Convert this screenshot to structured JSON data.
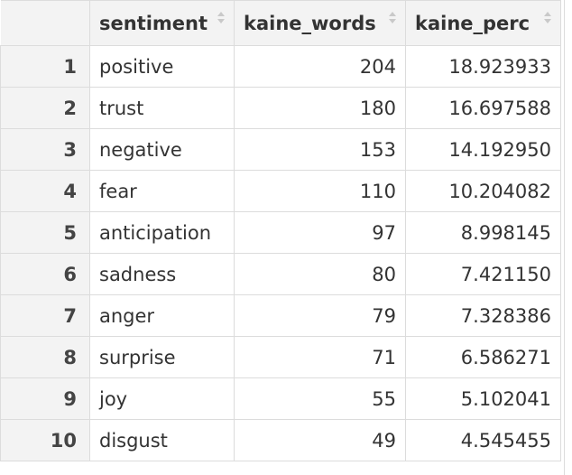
{
  "table": {
    "headers": {
      "index": "",
      "sentiment": "sentiment",
      "words": "kaine_words",
      "perc": "kaine_perc"
    },
    "sort_icon": "sort-arrows-icon",
    "rows": [
      {
        "index": "1",
        "sentiment": "positive",
        "words": "204",
        "perc": "18.923933"
      },
      {
        "index": "2",
        "sentiment": "trust",
        "words": "180",
        "perc": "16.697588"
      },
      {
        "index": "3",
        "sentiment": "negative",
        "words": "153",
        "perc": "14.192950"
      },
      {
        "index": "4",
        "sentiment": "fear",
        "words": "110",
        "perc": "10.204082"
      },
      {
        "index": "5",
        "sentiment": "anticipation",
        "words": "97",
        "perc": "8.998145"
      },
      {
        "index": "6",
        "sentiment": "sadness",
        "words": "80",
        "perc": "7.421150"
      },
      {
        "index": "7",
        "sentiment": "anger",
        "words": "79",
        "perc": "7.328386"
      },
      {
        "index": "8",
        "sentiment": "surprise",
        "words": "71",
        "perc": "6.586271"
      },
      {
        "index": "9",
        "sentiment": "joy",
        "words": "55",
        "perc": "5.102041"
      },
      {
        "index": "10",
        "sentiment": "disgust",
        "words": "49",
        "perc": "4.545455"
      }
    ]
  }
}
